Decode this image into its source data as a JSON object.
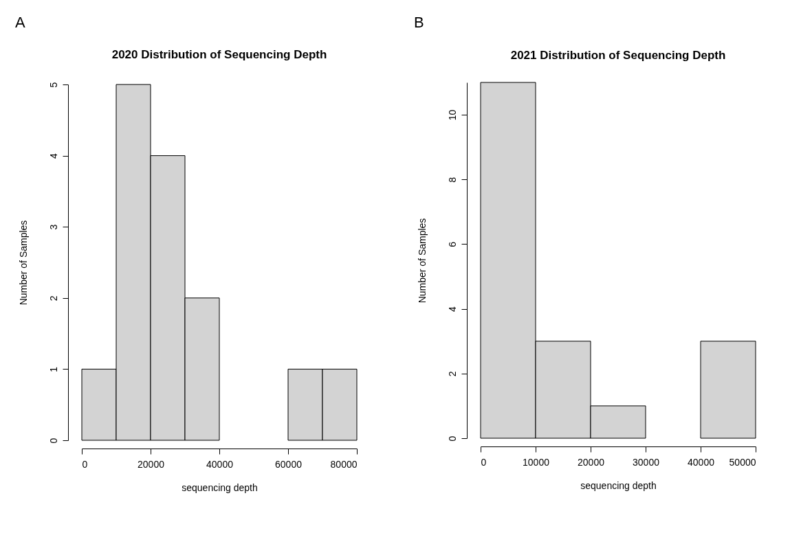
{
  "chart_data": [
    {
      "type": "histogram",
      "title": "2020 Distribution of Sequencing Depth",
      "xlabel": "sequencing depth",
      "ylabel": "Number of Samples",
      "annotations": [
        "A"
      ],
      "bins": [
        0,
        10000,
        20000,
        30000,
        40000,
        50000,
        60000,
        70000,
        80000
      ],
      "values": [
        1,
        5,
        4,
        2,
        0,
        0,
        1,
        1
      ],
      "color": "#d3d3d3",
      "xlim": [
        0,
        80000
      ],
      "xticks": [
        0,
        20000,
        40000,
        60000,
        80000
      ],
      "ylim": [
        0,
        5
      ],
      "yticks": [
        0,
        1,
        2,
        3,
        4,
        5
      ]
    },
    {
      "type": "histogram",
      "title": "2021 Distribution of Sequencing Depth",
      "xlabel": "sequencing depth",
      "ylabel": "Number of Samples",
      "annotations": [
        "B"
      ],
      "bins": [
        0,
        10000,
        20000,
        30000,
        40000,
        50000
      ],
      "values": [
        11,
        3,
        1,
        0,
        3
      ],
      "color": "#d3d3d3",
      "xlim": [
        0,
        50000
      ],
      "xticks": [
        0,
        10000,
        20000,
        30000,
        40000,
        50000
      ],
      "ylim": [
        0,
        11
      ],
      "yticks": [
        0,
        2,
        4,
        6,
        8,
        10
      ]
    }
  ]
}
